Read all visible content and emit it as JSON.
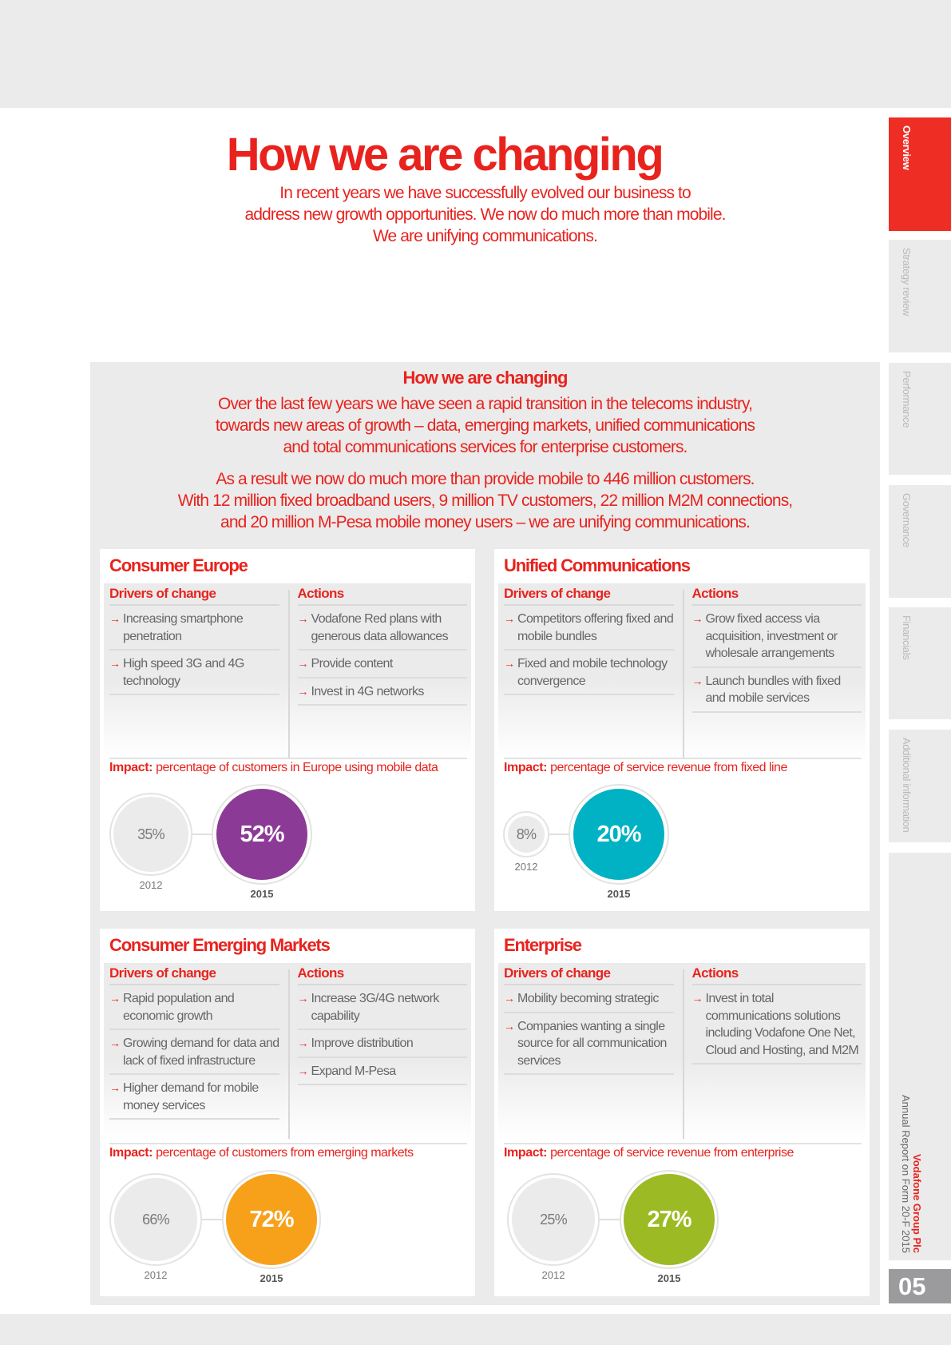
{
  "header": {
    "title": "How we are changing",
    "subtitle_lines": [
      "In recent years we have successfully evolved our business to",
      "address new growth opportunities. We now do much more than mobile.",
      "We are unifying communications."
    ]
  },
  "intro": {
    "title": "How we are changing",
    "paragraph1": [
      "Over the last few years we have seen a rapid transition in the telecoms industry,",
      "towards new areas of growth – data, emerging markets, unified communications",
      "and total communications services for enterprise customers."
    ],
    "paragraph2": [
      "As a result we now do much more than provide mobile to 446 million customers.",
      "With 12 million fixed broadband users, 9 million TV customers, 22 million M2M connections,",
      "and 20 million M-Pesa mobile money users – we are unifying communications."
    ]
  },
  "labels": {
    "drivers": "Drivers of change",
    "actions": "Actions",
    "impact": "Impact:",
    "arrow": "→"
  },
  "panels": [
    {
      "title": "Consumer Europe",
      "drivers": [
        "Increasing smartphone penetration",
        "High speed 3G and 4G technology"
      ],
      "actions": [
        "Vodafone Red plans with generous data allowances",
        "Provide content",
        "Invest in 4G networks"
      ],
      "impact": "percentage of customers in Europe using mobile data",
      "before": {
        "year": "2012",
        "value": "35%"
      },
      "after": {
        "year": "2015",
        "value": "52%"
      },
      "color": "#8b3a96"
    },
    {
      "title": "Unified Communications",
      "drivers": [
        "Competitors offering fixed and mobile bundles",
        "Fixed and mobile technology convergence"
      ],
      "actions": [
        "Grow fixed access via acquisition, investment or wholesale arrangements",
        "Launch bundles with fixed and mobile services"
      ],
      "impact": "percentage of service revenue from fixed line",
      "before": {
        "year": "2012",
        "value": "8%"
      },
      "after": {
        "year": "2015",
        "value": "20%"
      },
      "color": "#00b2c3"
    },
    {
      "title": "Consumer Emerging Markets",
      "drivers": [
        "Rapid population and economic growth",
        "Growing demand for data and lack of fixed infrastructure",
        "Higher demand for mobile money services"
      ],
      "actions": [
        "Increase 3G/4G network capability",
        "Improve distribution",
        "Expand M-Pesa"
      ],
      "impact": "percentage of customers from emerging markets",
      "before": {
        "year": "2012",
        "value": "66%"
      },
      "after": {
        "year": "2015",
        "value": "72%"
      },
      "color": "#f7a11b"
    },
    {
      "title": "Enterprise",
      "drivers": [
        "Mobility becoming strategic",
        "Companies wanting a single source for all communication services"
      ],
      "actions": [
        "Invest in total communications solutions including Vodafone One Net, Cloud and Hosting, and M2M"
      ],
      "impact": "percentage of service revenue from enterprise",
      "before": {
        "year": "2012",
        "value": "25%"
      },
      "after": {
        "year": "2015",
        "value": "27%"
      },
      "color": "#9cba23"
    }
  ],
  "side_tabs": [
    "Overview",
    "Strategy review",
    "Performance",
    "Governance",
    "Financials",
    "Additional information"
  ],
  "active_tab": "Overview",
  "footer": {
    "brand": "Vodafone Group Plc",
    "document": "Annual Report on Form 20-F 2015",
    "page": "05"
  },
  "colors": {
    "accent": "#e8231e",
    "tab_active": "#ee2e24",
    "panel_bg": "#ebebeb"
  }
}
